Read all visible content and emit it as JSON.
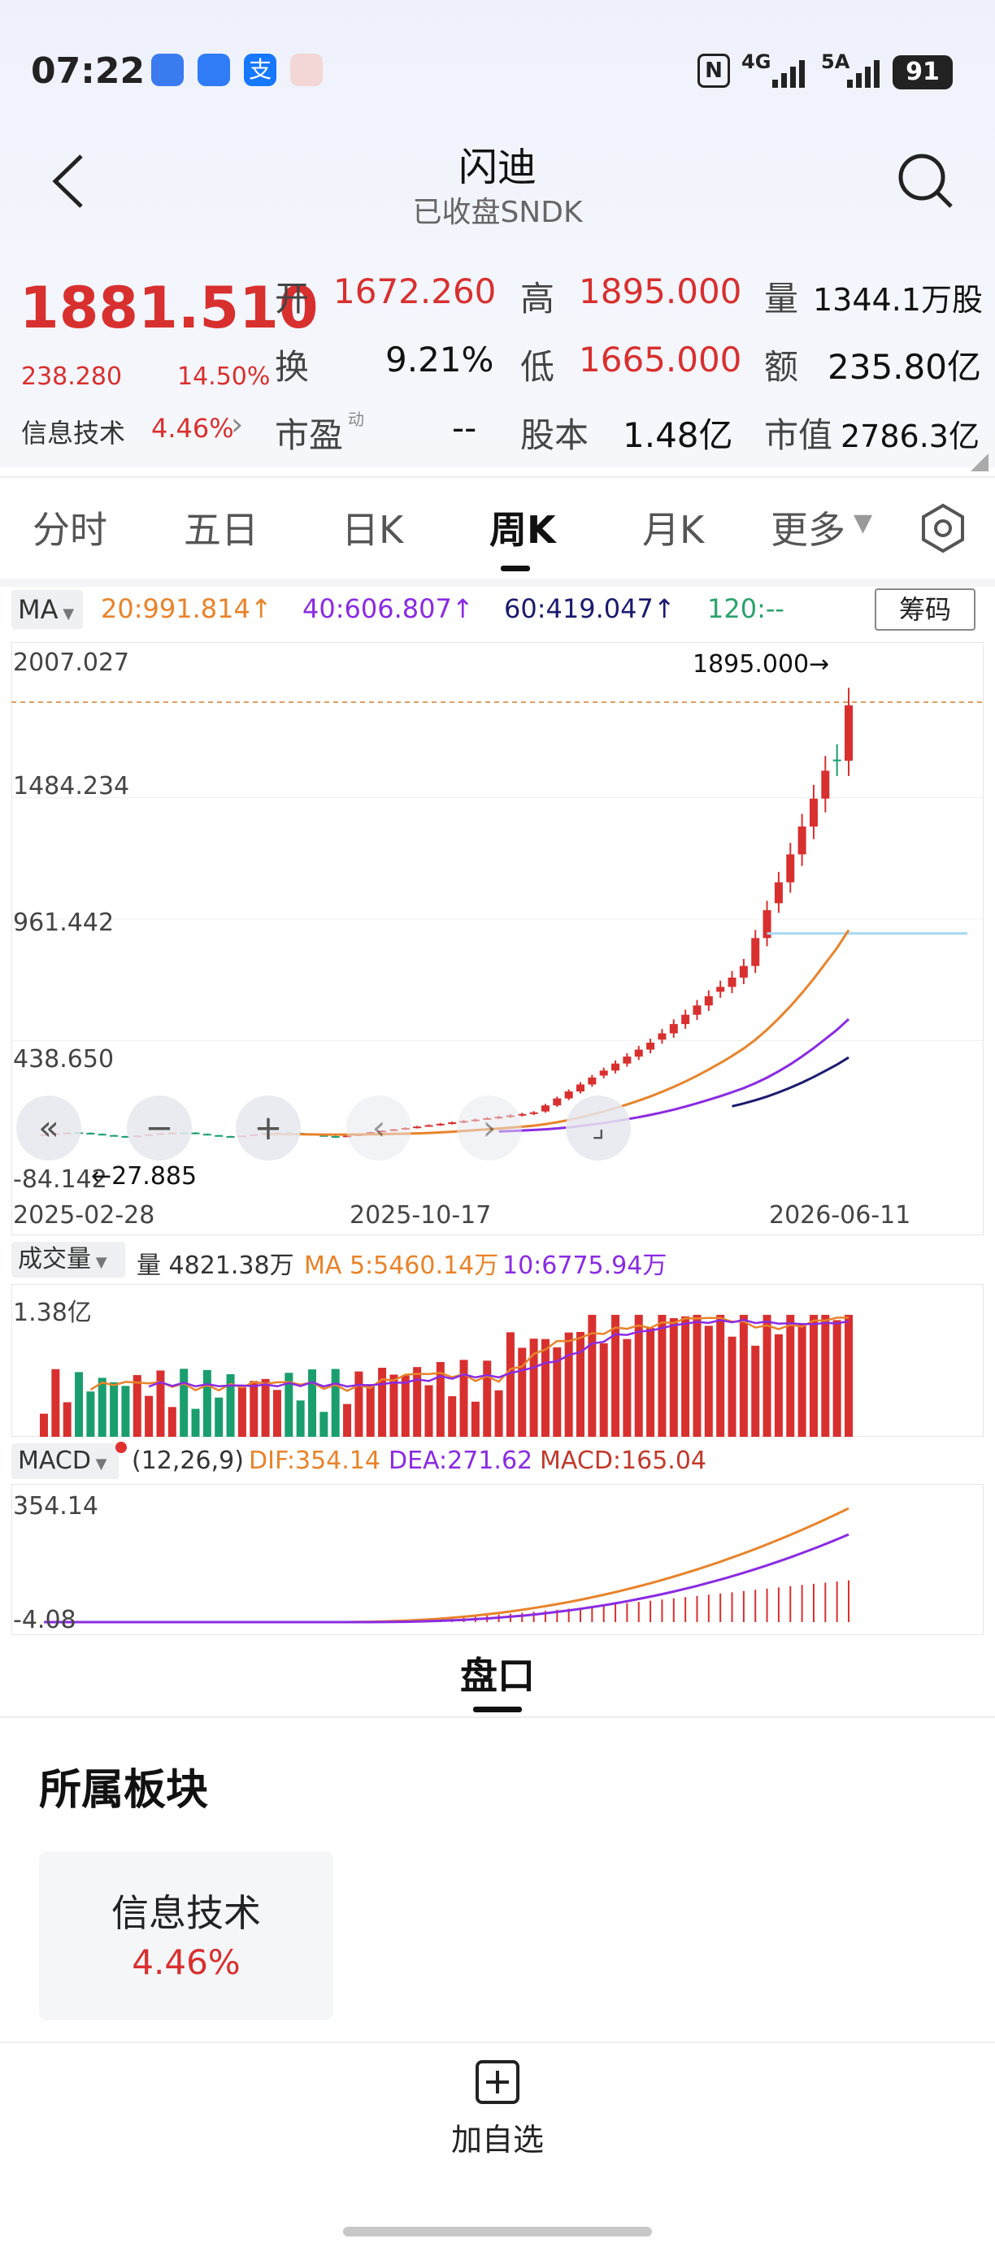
{
  "status_bar": {
    "time": "07:22",
    "network1": "4G",
    "network2": "5A",
    "battery": "91"
  },
  "header": {
    "title": "闪迪",
    "subtitle": "已收盘SNDK"
  },
  "quote": {
    "price": "1881.510",
    "change": "238.280",
    "change_pct": "14.50%",
    "sector_name": "信息技术",
    "sector_pct": "4.46%",
    "open_label": "开",
    "open": "1672.260",
    "high_label": "高",
    "high": "1895.000",
    "volume_label": "量",
    "volume": "1344.1万股",
    "turnover_label": "换",
    "turnover": "9.21%",
    "low_label": "低",
    "low": "1665.000",
    "amount_label": "额",
    "amount": "235.80亿",
    "pe_label": "市盈",
    "pe_sup": "动",
    "pe": "--",
    "shares_label": "股本",
    "shares": "1.48亿",
    "mcap_label": "市值",
    "mcap": "2786.3亿"
  },
  "tabs": [
    "分时",
    "五日",
    "日K",
    "周K",
    "月K",
    "更多"
  ],
  "active_tab": "周K",
  "ma_legend": {
    "selector": "MA",
    "ma20": "20:991.814↑",
    "ma40": "40:606.807↑",
    "ma60": "60:419.047↑",
    "ma120": "120:--",
    "chips_button": "筹码"
  },
  "price_axis": [
    "2007.027",
    "1484.234",
    "961.442",
    "438.650",
    "-84.142"
  ],
  "max_label": "1895.000→",
  "min_label": "←27.885",
  "date_axis": [
    "2025-02-28",
    "2025-10-17",
    "2026-06-11"
  ],
  "volume_legend": {
    "selector": "成交量",
    "vol": "量 4821.38万",
    "ma5": "MA 5:5460.14万",
    "ma10": "10:6775.94万",
    "axis_top": "1.38亿"
  },
  "macd_legend": {
    "selector": "MACD",
    "params": "(12,26,9)",
    "dif": "DIF:354.14",
    "dea": "DEA:271.62",
    "macd": "MACD:165.04",
    "axis_top": "354.14",
    "axis_bottom": "-4.08"
  },
  "handicap_title": "盘口",
  "sector_section": {
    "title": "所属板块",
    "card_name": "信息技术",
    "card_pct": "4.46%"
  },
  "bottom": {
    "add_watch": "加自选"
  },
  "colors": {
    "up": "#d8302f",
    "down": "#1a9e6e",
    "ma20": "#e8832a",
    "ma40": "#8a2be2",
    "ma60": "#1a1a6e",
    "ma120": "#2aa36b"
  },
  "chart_data": {
    "type": "candlestick",
    "period": "weekly",
    "ylim": [
      -84.142,
      2007.027
    ],
    "candles_count": 70,
    "last_close": 1881.51,
    "period_high": 1895.0,
    "period_low": 27.885
  }
}
